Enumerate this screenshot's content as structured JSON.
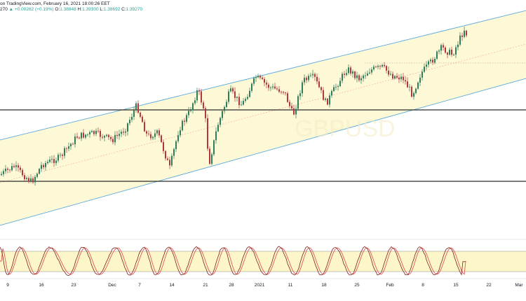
{
  "header": {
    "line1": "on TradingView.com, February 16, 2021 18:00:26 EET",
    "line2_prefix": "270",
    "change_arrow": "▲",
    "change": "+0.00262 (+0.19%)",
    "o_label": "O:",
    "o_value": "1.38848",
    "h_label": "H:",
    "h_value": "1.39300",
    "l_label": "L:",
    "l_value": "1.38692",
    "c_label": "C:",
    "c_value": "1.39270"
  },
  "watermark": "GBPUSD",
  "x_axis": {
    "labels": [
      "9",
      "16",
      "23",
      "Dec",
      "7",
      "14",
      "21",
      "28",
      "2021",
      "11",
      "18",
      "25",
      "Feb",
      "8",
      "15",
      "22",
      "Mar"
    ]
  },
  "colors": {
    "channel_fill": "#fdf8d6",
    "channel_line": "#5aa9dc",
    "mid_line": "#f3a6a6",
    "support_line": "#2b2b2b",
    "candle_up": "#2e7d5b",
    "candle_down": "#b2383f",
    "stoch_k": "#7a1f1f",
    "stoch_d": "#e05a4f",
    "stoch_band": "#fdf6c8"
  },
  "chart_data": {
    "type": "candlestick",
    "series": "price",
    "indicator": "stochastic",
    "last_close": 1.3927,
    "support_levels": [
      "horizontal line upper",
      "horizontal line lower"
    ],
    "channel": "ascending regression channel"
  }
}
